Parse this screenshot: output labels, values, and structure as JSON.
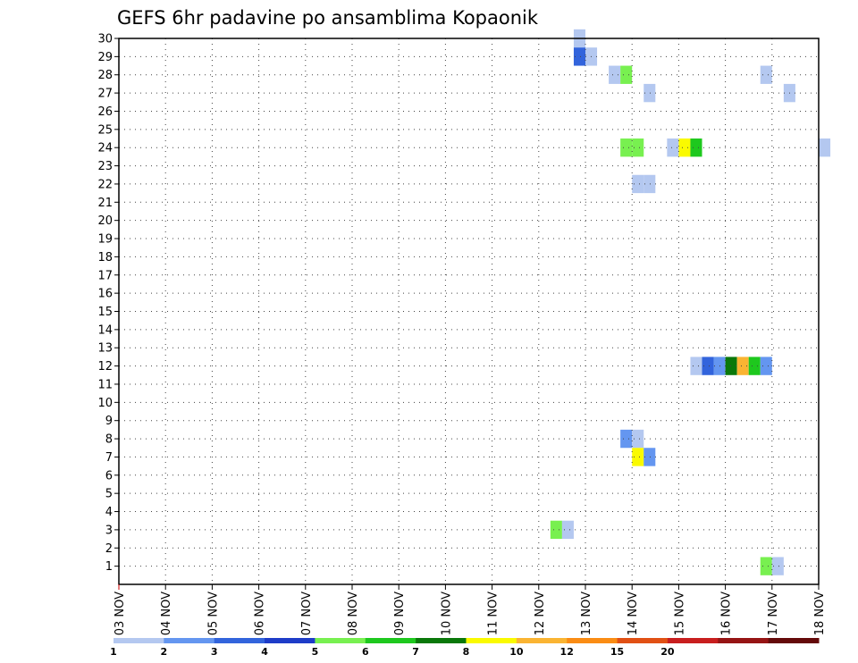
{
  "chart_data": {
    "type": "heatmap",
    "title": "GEFS 6hr padavine po ansamblima Kopaonik",
    "xlabel": "",
    "ylabel": "",
    "x_tick_labels": [
      "03 NOV",
      "04 NOV",
      "05 NOV",
      "06 NOV",
      "07 NOV",
      "08 NOV",
      "09 NOV",
      "10 NOV",
      "11 NOV",
      "12 NOV",
      "13 NOV",
      "14 NOV",
      "15 NOV",
      "16 NOV",
      "17 NOV",
      "18 NOV"
    ],
    "x_range_days": [
      0,
      15
    ],
    "y_tick_labels": [
      "1",
      "2",
      "3",
      "4",
      "5",
      "6",
      "7",
      "8",
      "9",
      "10",
      "11",
      "12",
      "13",
      "14",
      "15",
      "16",
      "17",
      "18",
      "19",
      "20",
      "21",
      "22",
      "23",
      "24",
      "25",
      "26",
      "27",
      "28",
      "29",
      "30"
    ],
    "y_range": [
      0,
      30
    ],
    "grid": true,
    "colorbar": {
      "tick_labels": [
        "1",
        "2",
        "3",
        "4",
        "5",
        "6",
        "7",
        "8",
        "10",
        "12",
        "15",
        "20"
      ],
      "colors": [
        "#b4c8f0",
        "#6496f0",
        "#3264dc",
        "#1e3cc8",
        "#78f050",
        "#1ec81e",
        "#0a780a",
        "#fafa00",
        "#fab432",
        "#fa8c14",
        "#e15014",
        "#c81e1e",
        "#961414",
        "#640a0a"
      ]
    },
    "cells": [
      {
        "member": 30,
        "day": 9.75,
        "level": 0
      },
      {
        "member": 29,
        "day": 9.75,
        "level": 2
      },
      {
        "member": 29,
        "day": 10.0,
        "level": 0
      },
      {
        "member": 28,
        "day": 10.5,
        "level": 0
      },
      {
        "member": 28,
        "day": 10.75,
        "level": 4
      },
      {
        "member": 28,
        "day": 13.75,
        "level": 0
      },
      {
        "member": 27,
        "day": 11.25,
        "level": 0
      },
      {
        "member": 27,
        "day": 14.25,
        "level": 0
      },
      {
        "member": 24,
        "day": 10.75,
        "level": 4
      },
      {
        "member": 24,
        "day": 11.0,
        "level": 4
      },
      {
        "member": 24,
        "day": 11.75,
        "level": 0
      },
      {
        "member": 24,
        "day": 12.0,
        "level": 7
      },
      {
        "member": 24,
        "day": 12.25,
        "level": 5
      },
      {
        "member": 24,
        "day": 15.0,
        "level": 0
      },
      {
        "member": 22,
        "day": 11.0,
        "level": 0
      },
      {
        "member": 22,
        "day": 11.25,
        "level": 0
      },
      {
        "member": 12,
        "day": 12.25,
        "level": 0
      },
      {
        "member": 12,
        "day": 12.5,
        "level": 2
      },
      {
        "member": 12,
        "day": 12.75,
        "level": 1
      },
      {
        "member": 12,
        "day": 13.0,
        "level": 6
      },
      {
        "member": 12,
        "day": 13.25,
        "level": 8
      },
      {
        "member": 12,
        "day": 13.5,
        "level": 5
      },
      {
        "member": 12,
        "day": 13.75,
        "level": 1
      },
      {
        "member": 8,
        "day": 10.75,
        "level": 1
      },
      {
        "member": 8,
        "day": 11.0,
        "level": 0
      },
      {
        "member": 7,
        "day": 11.0,
        "level": 7
      },
      {
        "member": 7,
        "day": 11.25,
        "level": 1
      },
      {
        "member": 3,
        "day": 9.25,
        "level": 4
      },
      {
        "member": 3,
        "day": 9.5,
        "level": 0
      },
      {
        "member": 1,
        "day": 13.75,
        "level": 4
      },
      {
        "member": 1,
        "day": 14.0,
        "level": 0
      }
    ]
  }
}
